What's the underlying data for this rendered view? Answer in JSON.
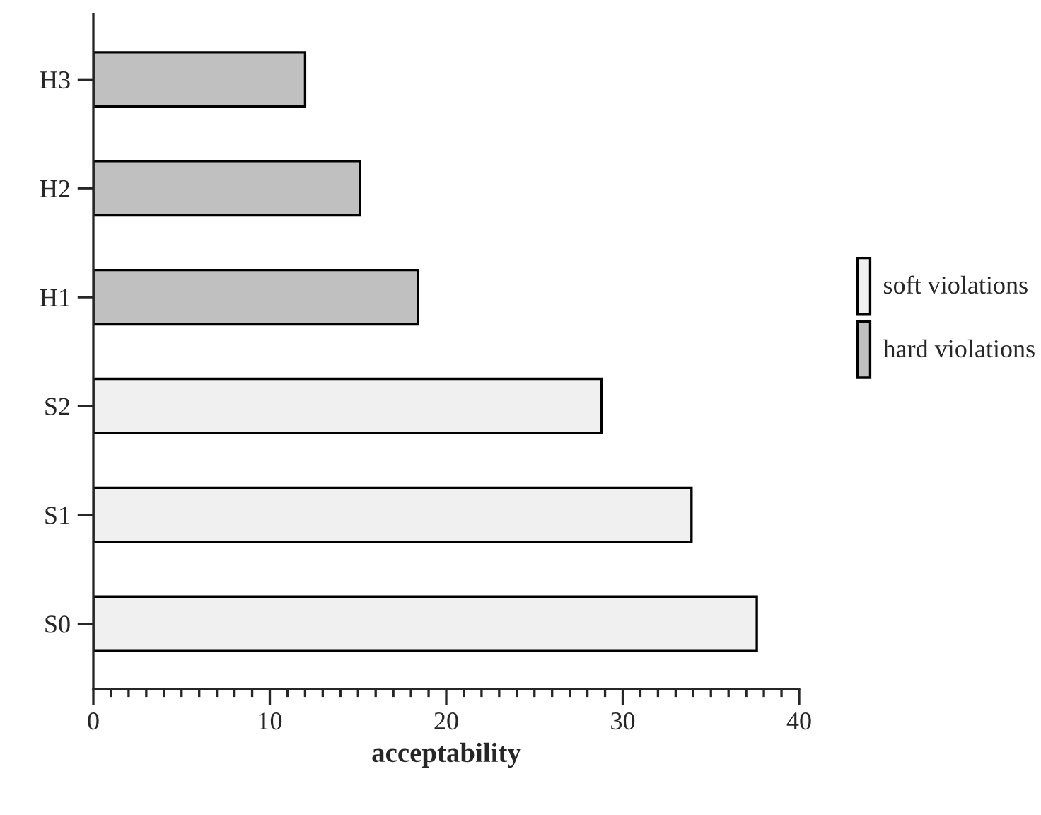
{
  "chart_data": {
    "type": "bar",
    "orientation": "horizontal",
    "xlabel": "acceptability",
    "categories": [
      "H3",
      "H2",
      "H1",
      "S2",
      "S1",
      "S0"
    ],
    "series": [
      {
        "name": "soft violations",
        "color": "#f0f0f0",
        "values": [
          null,
          null,
          null,
          28.8,
          33.9,
          37.6
        ]
      },
      {
        "name": "hard violations",
        "color": "#c0c0c0",
        "values": [
          12.0,
          15.1,
          18.4,
          null,
          null,
          null
        ]
      }
    ],
    "xlim": [
      0,
      40
    ],
    "xticks": [
      0,
      10,
      20,
      30,
      40
    ],
    "grid": false,
    "legend": "right"
  }
}
